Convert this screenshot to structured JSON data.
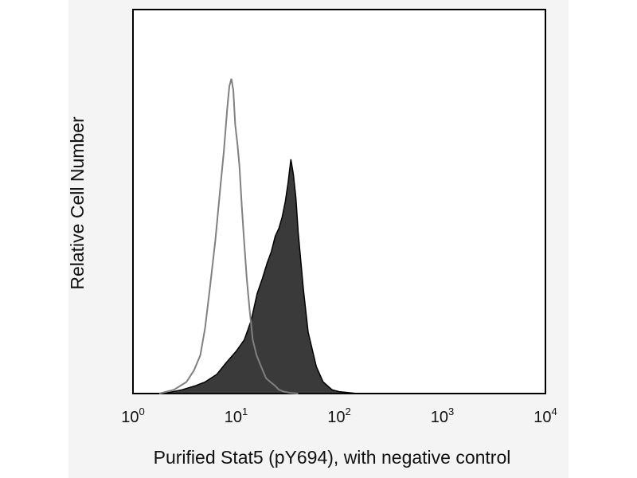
{
  "chart_data": {
    "type": "area",
    "title": "",
    "xlabel": "Purified Stat5 (pY694), with negative control",
    "ylabel": "Relative Cell Number",
    "x_scale": "log",
    "xlim": [
      1,
      10000
    ],
    "ylim": [
      0,
      1
    ],
    "x_ticks": [
      {
        "base": "10",
        "exp": "0"
      },
      {
        "base": "10",
        "exp": "1"
      },
      {
        "base": "10",
        "exp": "2"
      },
      {
        "base": "10",
        "exp": "3"
      },
      {
        "base": "10",
        "exp": "4"
      }
    ],
    "x_tick_values": [
      1,
      10,
      100,
      1000,
      10000
    ],
    "grid": false,
    "legend": "none",
    "series": [
      {
        "role": "negative control",
        "style": "outline",
        "color": "#808080",
        "x": [
          1.8,
          2.5,
          3.3,
          3.9,
          4.5,
          5.0,
          5.6,
          6.3,
          7.0,
          7.6,
          8.2,
          8.6,
          9.0,
          9.4,
          9.8,
          10.3,
          10.8,
          11.4,
          12.0,
          12.7,
          13.5,
          14.5,
          15.8,
          17.5,
          19.5,
          21.5,
          24.0,
          26.0,
          29.0,
          33.0,
          40.0
        ],
        "y": [
          0.0,
          0.01,
          0.03,
          0.06,
          0.1,
          0.17,
          0.28,
          0.4,
          0.53,
          0.63,
          0.74,
          0.8,
          0.82,
          0.79,
          0.7,
          0.65,
          0.59,
          0.48,
          0.39,
          0.3,
          0.22,
          0.14,
          0.1,
          0.07,
          0.04,
          0.03,
          0.02,
          0.01,
          0.005,
          0.002,
          0.0
        ]
      },
      {
        "role": "Purified Stat5 (pY694)",
        "style": "filled",
        "color": "#3a3a3a",
        "x": [
          2.0,
          3.0,
          4.0,
          5.0,
          6.5,
          8.0,
          10.0,
          12.0,
          14.0,
          16.0,
          18.0,
          20.0,
          22.0,
          24.0,
          26.0,
          28.0,
          30.0,
          32.0,
          34.0,
          36.0,
          38.0,
          40.0,
          45.0,
          50.0,
          60.0,
          70.0,
          85.0,
          100.0,
          150.0
        ],
        "y": [
          0.0,
          0.01,
          0.02,
          0.03,
          0.05,
          0.08,
          0.11,
          0.14,
          0.19,
          0.26,
          0.3,
          0.34,
          0.37,
          0.41,
          0.43,
          0.46,
          0.5,
          0.55,
          0.61,
          0.57,
          0.51,
          0.42,
          0.27,
          0.16,
          0.07,
          0.03,
          0.01,
          0.005,
          0.0
        ]
      }
    ]
  }
}
